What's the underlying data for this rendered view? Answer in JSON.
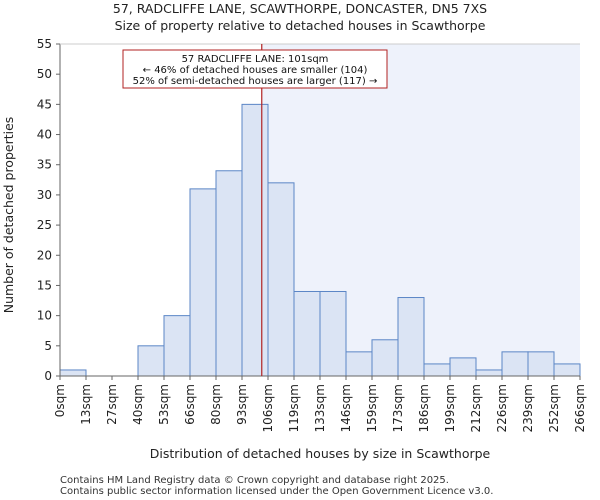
{
  "chart_data": {
    "type": "bar",
    "title": "57, RADCLIFFE LANE, SCAWTHORPE, DONCASTER, DN5 7XS",
    "subtitle": "Size of property relative to detached houses in Scawthorpe",
    "xlabel": "Distribution of detached houses by size in Scawthorpe",
    "ylabel": "Number of detached properties",
    "bin_edges": [
      "0sqm",
      "13sqm",
      "27sqm",
      "40sqm",
      "53sqm",
      "66sqm",
      "80sqm",
      "93sqm",
      "106sqm",
      "119sqm",
      "133sqm",
      "146sqm",
      "159sqm",
      "173sqm",
      "186sqm",
      "199sqm",
      "212sqm",
      "226sqm",
      "239sqm",
      "252sqm",
      "266sqm"
    ],
    "values": [
      1,
      0,
      0,
      5,
      10,
      31,
      34,
      45,
      32,
      14,
      14,
      4,
      6,
      13,
      2,
      3,
      1,
      4,
      4,
      2
    ],
    "ylim": [
      0,
      55
    ],
    "yticks": [
      0,
      5,
      10,
      15,
      20,
      25,
      30,
      35,
      40,
      45,
      50,
      55
    ],
    "marker": {
      "value_bin_position": 7.76,
      "label": "57 RADCLIFFE LANE: 101sqm"
    },
    "annotation": {
      "line1": "57 RADCLIFFE LANE: 101sqm",
      "line2": "← 46% of detached houses are smaller (104)",
      "line3": "52% of semi-detached houses are larger (117) →"
    },
    "colors": {
      "bar_fill": "#dbe4f4",
      "bar_stroke": "#5b86c6",
      "highlight_bg": "#eef2fb",
      "marker": "#b22222"
    }
  },
  "footer": {
    "line1": "Contains HM Land Registry data © Crown copyright and database right 2025.",
    "line2": "Contains public sector information licensed under the Open Government Licence v3.0."
  }
}
